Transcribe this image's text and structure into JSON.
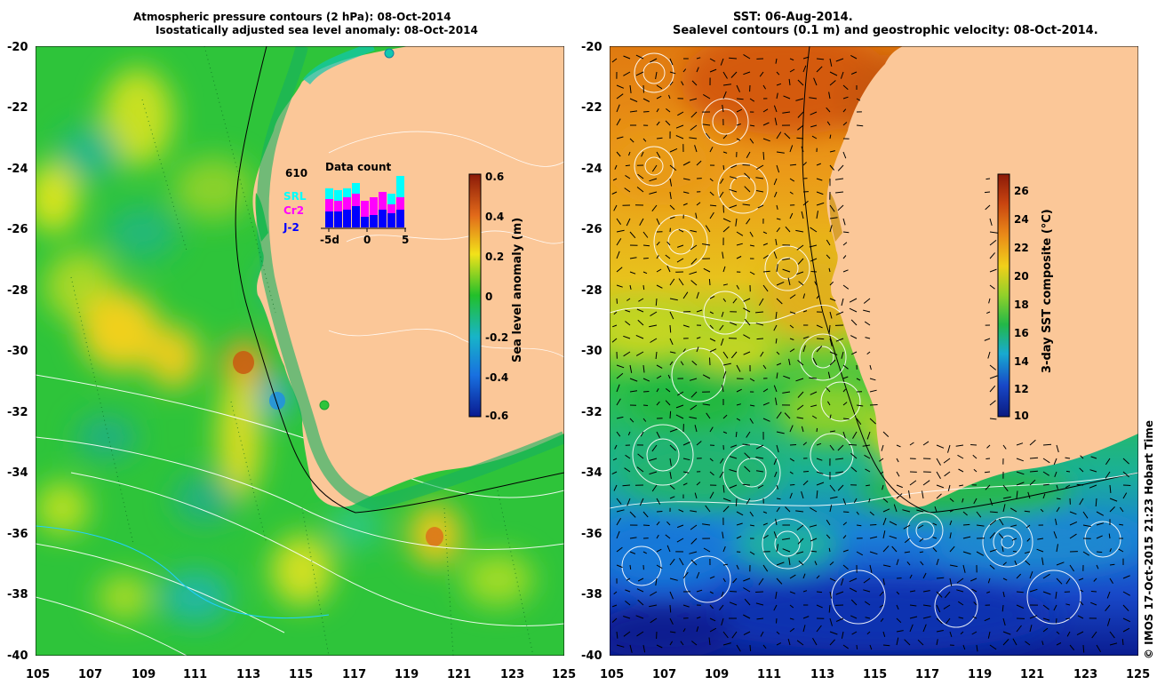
{
  "left_map": {
    "title_line1": "Atmospheric pressure contours (2 hPa): 08-Oct-2014",
    "title_line2": "Isostatically adjusted sea level anomaly: 08-Oct-2014",
    "lat_ticks": [
      "-20",
      "-22",
      "-24",
      "-26",
      "-28",
      "-30",
      "-32",
      "-34",
      "-36",
      "-38",
      "-40"
    ],
    "lon_ticks": [
      "105",
      "107",
      "109",
      "111",
      "113",
      "115",
      "117",
      "119",
      "121",
      "123",
      "125"
    ],
    "colorbar": {
      "label": "Sea level anomaly (m)",
      "ticks": [
        "0.6",
        "0.4",
        "0.2",
        "0",
        "-0.2",
        "-0.4",
        "-0.6"
      ],
      "range": [
        -0.6,
        0.6
      ]
    },
    "inset": {
      "title": "Data count",
      "count": "610",
      "series": [
        "SRL",
        "Cr2",
        "J-2"
      ],
      "series_colors": [
        "#00ffff",
        "#ff00ff",
        "#0000ff"
      ],
      "xticks": [
        "-5d",
        "0",
        "5"
      ]
    }
  },
  "right_map": {
    "title_line1": "SST: 06-Aug-2014.",
    "title_line2": "Sealevel contours (0.1 m) and geostrophic velocity: 08-Oct-2014.",
    "lat_ticks": [
      "-20",
      "-22",
      "-24",
      "-26",
      "-28",
      "-30",
      "-32",
      "-34",
      "-36",
      "-38",
      "-40"
    ],
    "lon_ticks": [
      "105",
      "107",
      "109",
      "111",
      "113",
      "115",
      "117",
      "119",
      "121",
      "123",
      "125"
    ],
    "colorbar": {
      "label": "3-day SST composite (°C)",
      "ticks": [
        "26",
        "24",
        "22",
        "20",
        "18",
        "16",
        "14",
        "12",
        "10"
      ],
      "range": [
        10,
        27
      ]
    }
  },
  "credit": "© IMOS 17-Oct-2015 21:23 Hobart Time",
  "colors": {
    "land": "#fbc798",
    "text": "#000000"
  }
}
